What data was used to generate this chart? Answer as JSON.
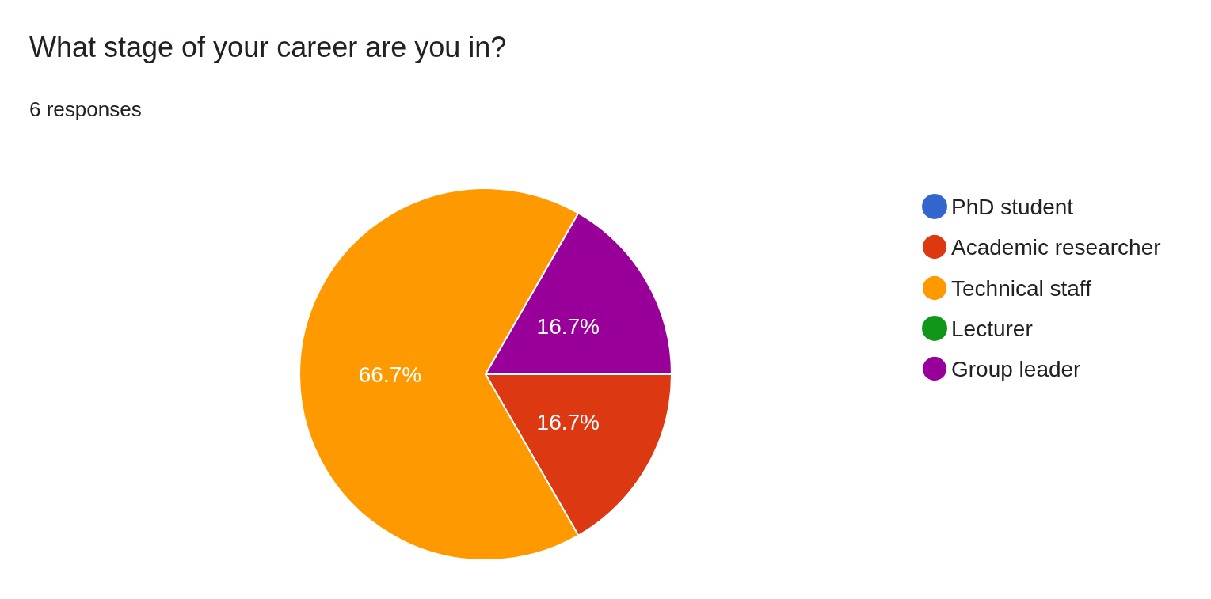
{
  "chart_data": {
    "type": "pie",
    "title": "What stage of your career are you in?",
    "subtitle": "6 responses",
    "categories": [
      "PhD student",
      "Academic researcher",
      "Technical staff",
      "Lecturer",
      "Group leader"
    ],
    "values": [
      0,
      16.7,
      66.7,
      0,
      16.7
    ],
    "colors": [
      "#3366cc",
      "#dc3912",
      "#ff9900",
      "#109618",
      "#990099"
    ],
    "value_labels": [
      null,
      "16.7%",
      "66.7%",
      null,
      "16.7%"
    ],
    "legend": "right"
  }
}
